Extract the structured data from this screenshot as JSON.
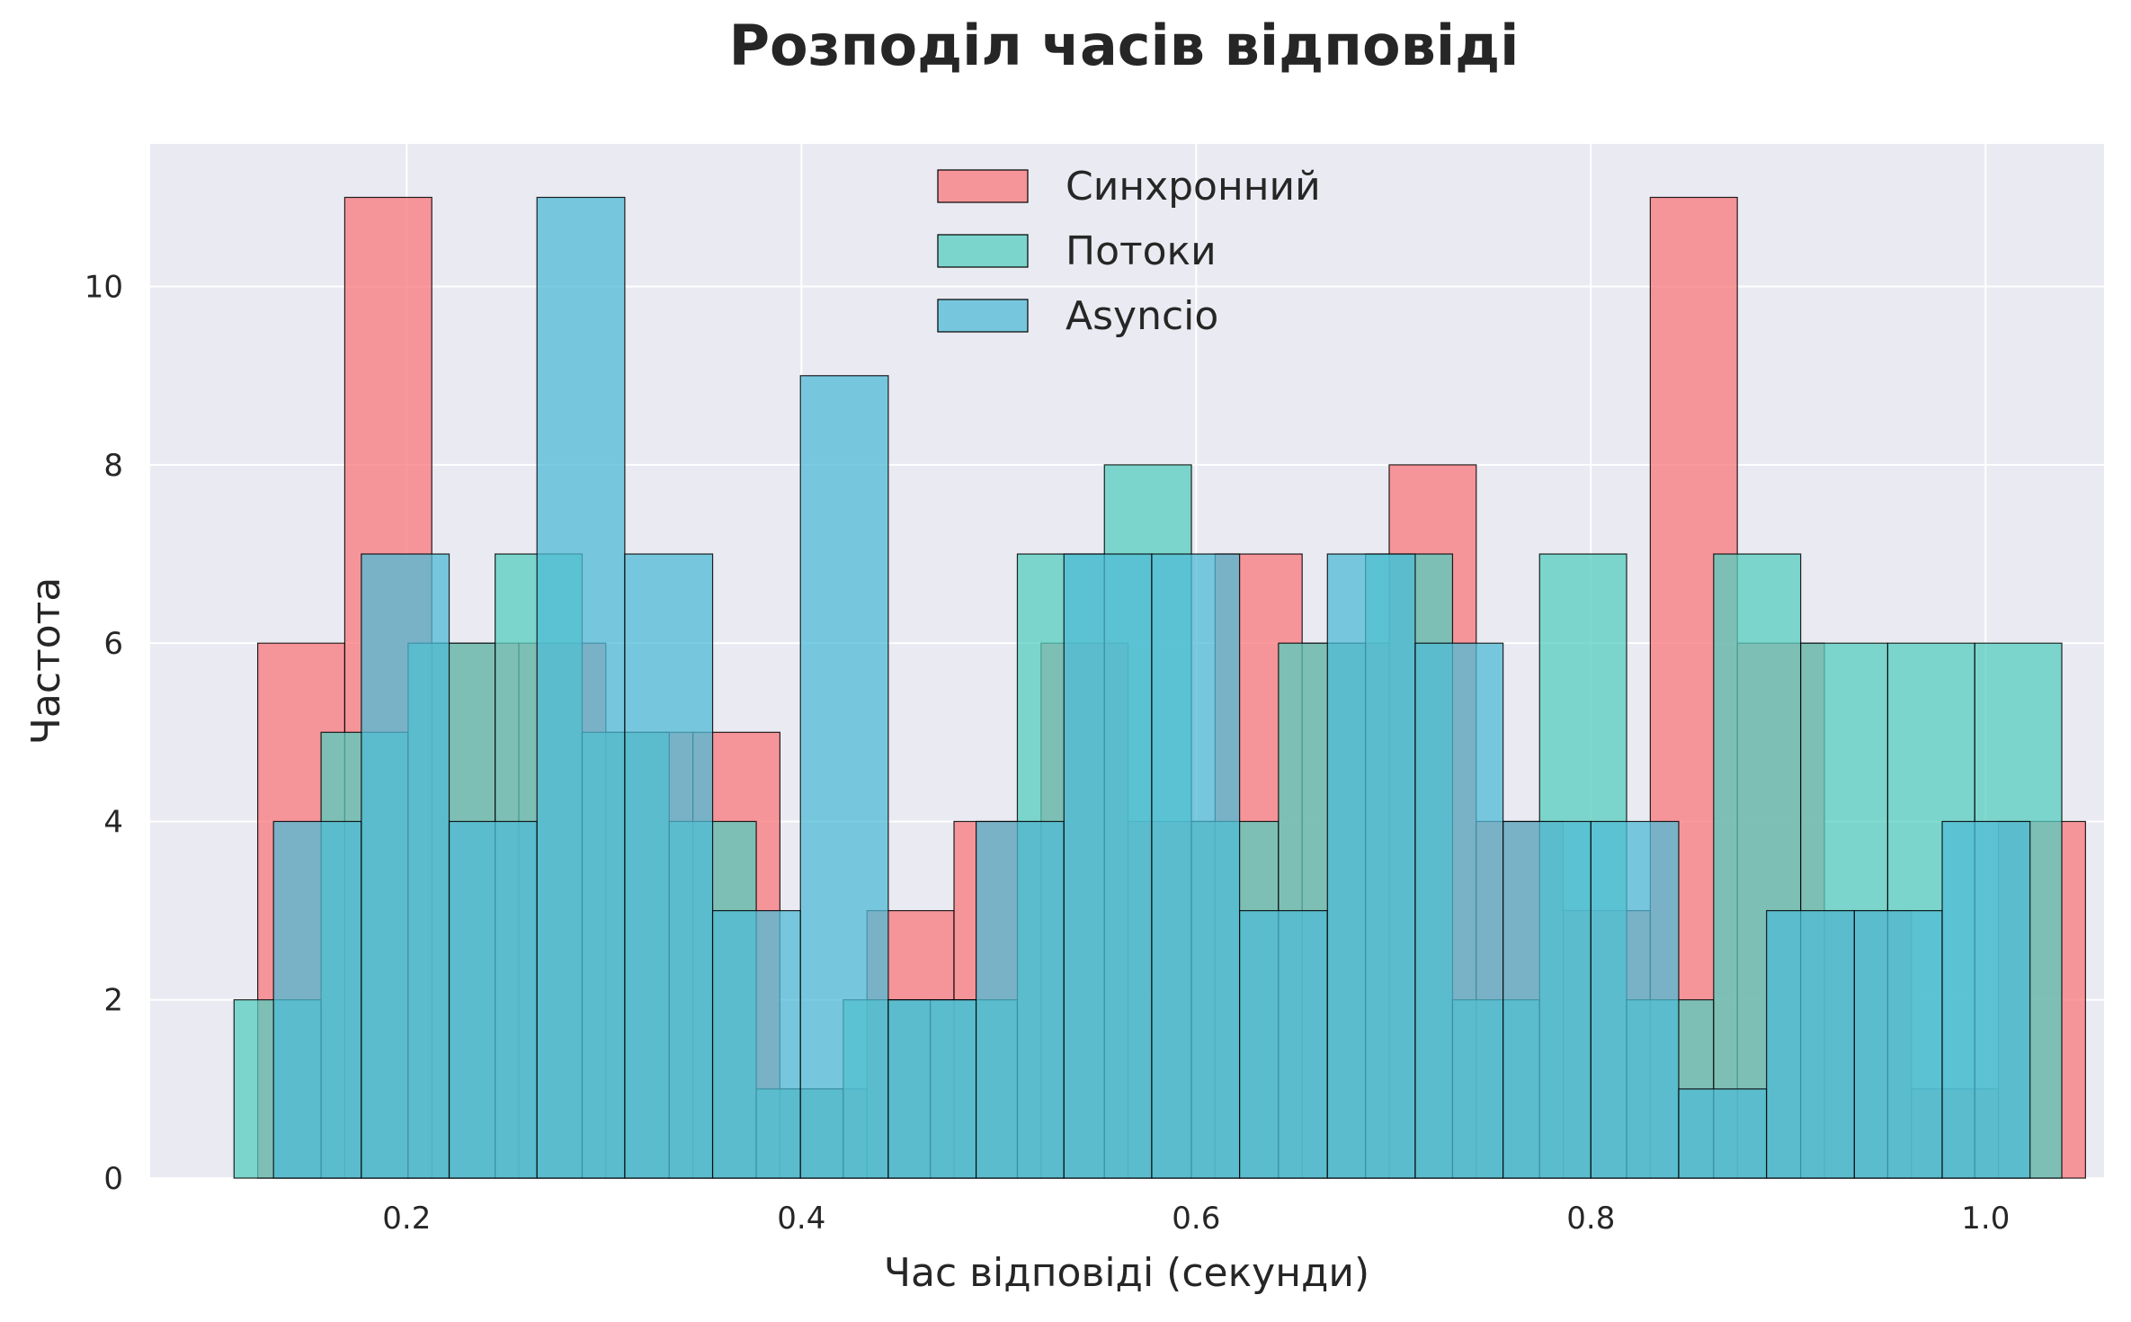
{
  "chart_data": {
    "type": "bar",
    "title": "Розподіл часів відповіді",
    "xlabel": "Час відповіді (секунди)",
    "ylabel": "Частота",
    "xlim": [
      0.07,
      1.06
    ],
    "ylim": [
      0,
      11.6
    ],
    "xticks": [
      0.2,
      0.4,
      0.6,
      0.8,
      1.0
    ],
    "xtick_labels": [
      "0.2",
      "0.4",
      "0.6",
      "0.8",
      "1.0"
    ],
    "yticks": [
      0,
      2,
      4,
      6,
      8,
      10
    ],
    "ytick_labels": [
      "0",
      "2",
      "4",
      "6",
      "8",
      "10"
    ],
    "grid": true,
    "legend_position": "top-center",
    "colors": {
      "background": "#eaeaf2",
      "grid": "#ffffff",
      "edge": "#000000"
    },
    "series": [
      {
        "name": "Синхронний",
        "color": "#f8777b",
        "bin_start": 0.1245,
        "bin_width": 0.0441,
        "values": [
          6,
          11,
          6,
          6,
          5,
          5,
          1,
          3,
          4,
          6,
          4,
          7,
          6,
          8,
          4,
          3,
          11,
          6,
          3,
          1,
          4
        ]
      },
      {
        "name": "Потоки",
        "color": "#55cdbf",
        "bin_start": 0.1125,
        "bin_width": 0.0441,
        "values": [
          2,
          5,
          6,
          7,
          5,
          4,
          1,
          2,
          2,
          7,
          8,
          4,
          6,
          7,
          2,
          7,
          2,
          7,
          6,
          6,
          6
        ]
      },
      {
        "name": "Asyncio",
        "color": "#4fbbd5",
        "bin_start": 0.1325,
        "bin_width": 0.0445,
        "values": [
          4,
          7,
          4,
          11,
          7,
          3,
          9,
          2,
          4,
          7,
          7,
          3,
          7,
          6,
          4,
          4,
          1,
          3,
          3,
          4
        ]
      }
    ]
  }
}
